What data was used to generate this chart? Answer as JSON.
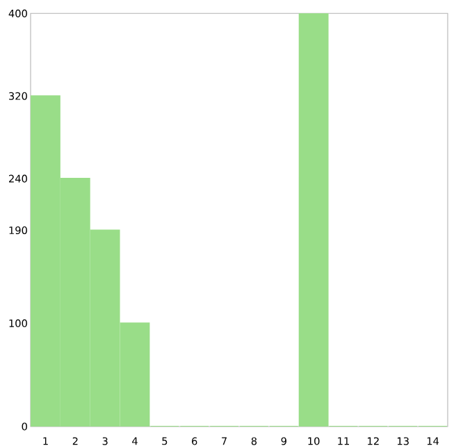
{
  "chart_data": {
    "type": "bar",
    "categories": [
      "1",
      "2",
      "3",
      "4",
      "5",
      "6",
      "7",
      "8",
      "9",
      "10",
      "11",
      "12",
      "13",
      "14"
    ],
    "values": [
      320,
      240,
      190,
      100,
      0,
      0,
      0,
      0,
      0,
      400,
      0,
      0,
      0,
      0
    ],
    "color": "#99dd88",
    "ylim": [
      0,
      400
    ],
    "yticks": [
      0,
      100,
      190,
      240,
      320,
      400
    ]
  }
}
